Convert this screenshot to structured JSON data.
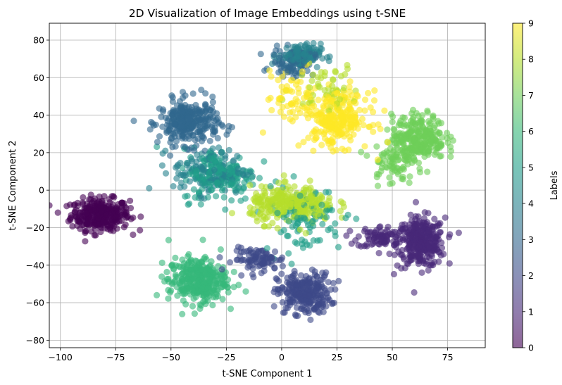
{
  "chart_data": {
    "type": "scatter",
    "title": "2D Visualization of Image Embeddings using t-SNE",
    "xlabel": "t-SNE Component 1",
    "ylabel": "t-SNE Component 2",
    "xlim": [
      -105,
      92
    ],
    "ylim": [
      -84,
      89
    ],
    "x_ticks": [
      -100,
      -75,
      -50,
      -25,
      0,
      25,
      50,
      75
    ],
    "y_ticks": [
      -80,
      -60,
      -40,
      -20,
      0,
      20,
      40,
      60,
      80
    ],
    "grid": true,
    "point_alpha": 0.6,
    "colormap": "viridis",
    "colormap_stops": [
      "#440154",
      "#482878",
      "#3e4989",
      "#31688e",
      "#26828e",
      "#1f9e89",
      "#35b779",
      "#6ece58",
      "#b5de2b",
      "#fde725"
    ],
    "colorbar": {
      "label": "Labels",
      "min": 0,
      "max": 9,
      "ticks": [
        0,
        1,
        2,
        3,
        4,
        5,
        6,
        7,
        8,
        9
      ]
    },
    "clusters": [
      {
        "label": 0,
        "center": [
          -82,
          -13
        ],
        "spread": [
          11,
          7
        ],
        "count": 320
      },
      {
        "label": 1,
        "center": [
          63,
          -28
        ],
        "spread": [
          9,
          11
        ],
        "count": 320
      },
      {
        "label": 1,
        "center": [
          45,
          -25
        ],
        "spread": [
          9,
          5
        ],
        "count": 80
      },
      {
        "label": 2,
        "center": [
          10,
          -55
        ],
        "spread": [
          10,
          9
        ],
        "count": 260
      },
      {
        "label": 2,
        "center": [
          -10,
          -37
        ],
        "spread": [
          10,
          5
        ],
        "count": 90
      },
      {
        "label": 3,
        "center": [
          -42,
          36
        ],
        "spread": [
          11,
          10
        ],
        "count": 300
      },
      {
        "label": 3,
        "center": [
          5,
          68
        ],
        "spread": [
          8,
          6
        ],
        "count": 80
      },
      {
        "label": 4,
        "center": [
          8,
          72
        ],
        "spread": [
          8,
          5
        ],
        "count": 110
      },
      {
        "label": 4,
        "center": [
          -32,
          10
        ],
        "spread": [
          14,
          10
        ],
        "count": 140
      },
      {
        "label": 5,
        "center": [
          -28,
          8
        ],
        "spread": [
          14,
          12
        ],
        "count": 170
      },
      {
        "label": 5,
        "center": [
          10,
          -15
        ],
        "spread": [
          15,
          15
        ],
        "count": 90
      },
      {
        "label": 6,
        "center": [
          -38,
          -48
        ],
        "spread": [
          11,
          10
        ],
        "count": 330
      },
      {
        "label": 7,
        "center": [
          62,
          28
        ],
        "spread": [
          10,
          10
        ],
        "count": 270
      },
      {
        "label": 7,
        "center": [
          50,
          15
        ],
        "spread": [
          8,
          10
        ],
        "count": 80
      },
      {
        "label": 8,
        "center": [
          5,
          -8
        ],
        "spread": [
          16,
          8
        ],
        "count": 300
      },
      {
        "label": 8,
        "center": [
          20,
          55
        ],
        "spread": [
          12,
          10
        ],
        "count": 50
      },
      {
        "label": 9,
        "center": [
          25,
          38
        ],
        "spread": [
          12,
          12
        ],
        "count": 260
      },
      {
        "label": 9,
        "center": [
          5,
          50
        ],
        "spread": [
          10,
          12
        ],
        "count": 60
      }
    ]
  }
}
